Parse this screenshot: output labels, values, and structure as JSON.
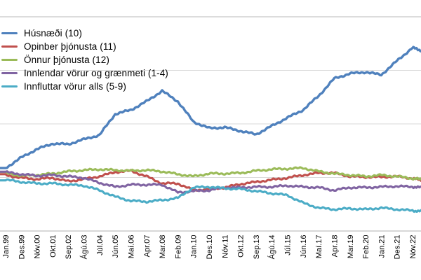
{
  "chart_data": {
    "type": "line",
    "title": "",
    "legend_position": "top-left",
    "x_tick_rotation": -90,
    "y_axis": {
      "labels_visible": false,
      "gridlines_visible": true,
      "inner_gridline_count": 3,
      "value_scale": "percent_of_plot_height_above_x_axis",
      "ylim": [
        0,
        100
      ]
    },
    "categories": [
      "Jan.99",
      "Des.99",
      "Nóv.00",
      "Okt.01",
      "Sep.02",
      "Ágú.03",
      "Júl.04",
      "Jún.05",
      "Maí.06",
      "Apr.07",
      "Mar.08",
      "Feb.09",
      "Jan.10",
      "Des.10",
      "Nóv.11",
      "Okt.12",
      "Sep.13",
      "Ágú.14",
      "Júl.15",
      "Jún.16",
      "Maí.17",
      "Apr.18",
      "Mar.19",
      "Feb.20",
      "Jan.21",
      "Des.21",
      "Nóv.22",
      ""
    ],
    "series": [
      {
        "name": "Húsnæði (10)",
        "color": "#4F81BD",
        "values": [
          29.4,
          34.3,
          38.2,
          40.8,
          40.5,
          42.8,
          44.8,
          54.6,
          56.5,
          60.5,
          65.4,
          60.5,
          51.0,
          48.0,
          48.4,
          46.7,
          45.1,
          49.0,
          52.9,
          56.5,
          63.1,
          71.2,
          73.5,
          74.2,
          72.9,
          79.4,
          85.6,
          84.3
        ]
      },
      {
        "name": "Opinber þjónusta (11)",
        "color": "#C0504D",
        "values": [
          26.1,
          24.8,
          24.2,
          24.8,
          23.2,
          24.2,
          25.5,
          27.5,
          28.1,
          25.5,
          22.2,
          22.2,
          19.0,
          19.6,
          20.3,
          21.9,
          22.9,
          23.9,
          24.8,
          26.1,
          27.1,
          27.1,
          25.5,
          25.2,
          25.2,
          25.5,
          24.5,
          23.9
        ]
      },
      {
        "name": "Önnur þjónusta (12)",
        "color": "#9BBB59",
        "values": [
          27.1,
          25.8,
          26.1,
          26.8,
          27.8,
          28.4,
          28.8,
          28.4,
          28.1,
          28.4,
          27.8,
          26.5,
          25.5,
          26.8,
          26.8,
          27.1,
          28.1,
          28.8,
          29.1,
          29.4,
          27.8,
          26.8,
          26.1,
          25.5,
          26.1,
          25.5,
          24.5,
          24.2
        ]
      },
      {
        "name": "Innlendar vörur og grænmeti (1-4)",
        "color": "#8064A2",
        "values": [
          27.5,
          26.5,
          25.8,
          26.1,
          25.5,
          24.8,
          22.5,
          20.6,
          21.6,
          21.6,
          21.6,
          18.0,
          18.6,
          19.0,
          20.3,
          20.3,
          20.6,
          20.6,
          21.2,
          20.6,
          20.3,
          19.0,
          20.3,
          20.3,
          20.6,
          20.9,
          20.6,
          20.3
        ]
      },
      {
        "name": "Innfluttar vörur alls (5-9)",
        "color": "#4BACC6",
        "values": [
          23.9,
          22.9,
          22.2,
          22.2,
          21.6,
          21.2,
          19.0,
          16.0,
          14.1,
          13.7,
          14.4,
          15.4,
          20.3,
          20.6,
          19.9,
          19.6,
          18.6,
          17.6,
          16.7,
          13.1,
          10.8,
          10.1,
          10.5,
          10.1,
          10.8,
          10.1,
          9.5,
          9.2
        ]
      }
    ]
  },
  "colors": {
    "background": "#FFFFFF",
    "top_border": "#DCDCDC",
    "gridline": "#D9D9D9",
    "axis_line": "#BFBFBF",
    "tick_label": "#000000",
    "legend_text": "#000000"
  }
}
